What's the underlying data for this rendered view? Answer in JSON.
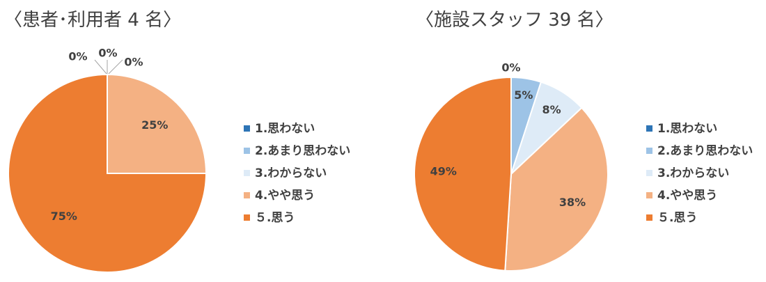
{
  "chart_data": [
    {
      "type": "pie",
      "title": "〈患者･利用者 4 名〉",
      "categories": [
        "1.思わない",
        "2.あまり思わない",
        "3.わからない",
        "4.やや思う",
        "５.思う"
      ],
      "values": [
        0,
        0,
        0,
        25,
        75
      ],
      "data_labels": [
        "0%",
        "0%",
        "0%",
        "25%",
        "75%"
      ],
      "colors": [
        "#2e75b6",
        "#9dc3e6",
        "#deebf7",
        "#f4b183",
        "#ed7d31"
      ],
      "legend_position": "right"
    },
    {
      "type": "pie",
      "title": "〈施設スタッフ 39 名〉",
      "categories": [
        "1.思わない",
        "2.あまり思わない",
        "3.わからない",
        "4.やや思う",
        "５.思う"
      ],
      "values": [
        0,
        5,
        8,
        38,
        49
      ],
      "data_labels": [
        "0%",
        "5%",
        "8%",
        "38%",
        "49%"
      ],
      "colors": [
        "#2e75b6",
        "#9dc3e6",
        "#deebf7",
        "#f4b183",
        "#ed7d31"
      ],
      "legend_position": "right"
    }
  ]
}
